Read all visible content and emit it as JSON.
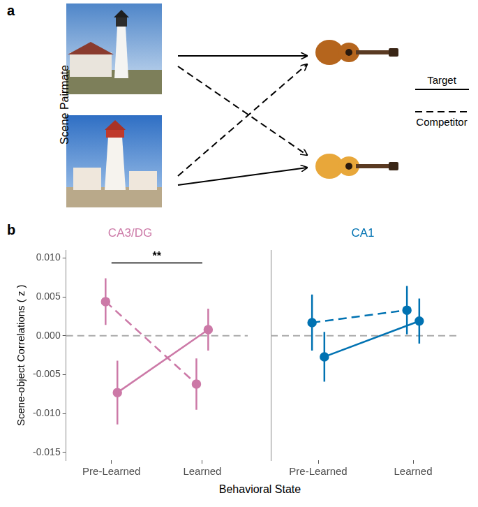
{
  "panel_a": {
    "label": "a",
    "y_label": "Scene Pairmate"
  },
  "panel_b_label": "b",
  "chart_data": [
    {
      "type": "line",
      "title": "CA3/DG",
      "color": "#CC79A7",
      "categories": [
        "Pre-Learned",
        "Learned"
      ],
      "x_label": "Behavioral State",
      "y_label": "Scene-object Correlations ( z )",
      "series": [
        {
          "name": "Target",
          "line_style": "solid",
          "marker": "circle",
          "values": [
            -0.0073,
            0.0008
          ],
          "errors": [
            0.0041,
            0.0027
          ]
        },
        {
          "name": "Competitor",
          "line_style": "dashed",
          "marker": "circle",
          "values": [
            0.0044,
            -0.0062
          ],
          "errors": [
            0.003,
            0.0033
          ]
        }
      ],
      "ylim": [
        -0.016,
        0.011
      ],
      "yticks": [
        {
          "value": -0.015,
          "label": "-0.015"
        },
        {
          "value": -0.01,
          "label": "-0.010"
        },
        {
          "value": -0.005,
          "label": "-0.005"
        },
        {
          "value": 0,
          "label": "0.000"
        },
        {
          "value": 0.005,
          "label": "0.005"
        },
        {
          "value": 0.01,
          "label": "0.010"
        }
      ],
      "hline": 0,
      "grid": false,
      "annotations": [
        {
          "text": "**",
          "from": "Pre-Learned",
          "to": "Learned"
        }
      ]
    },
    {
      "type": "line",
      "title": "CA1",
      "color": "#0072B2",
      "categories": [
        "Pre-Learned",
        "Learned"
      ],
      "series": [
        {
          "name": "Target",
          "line_style": "solid",
          "marker": "circle",
          "values": [
            -0.0027,
            0.0019
          ],
          "errors": [
            0.0032,
            0.0029
          ]
        },
        {
          "name": "Competitor",
          "line_style": "dashed",
          "marker": "circle",
          "values": [
            0.0017,
            0.0033
          ],
          "errors": [
            0.0036,
            0.0031
          ]
        }
      ],
      "ylim": [
        -0.016,
        0.011
      ],
      "hline": 0,
      "grid": false,
      "tick_labels": "x"
    }
  ]
}
